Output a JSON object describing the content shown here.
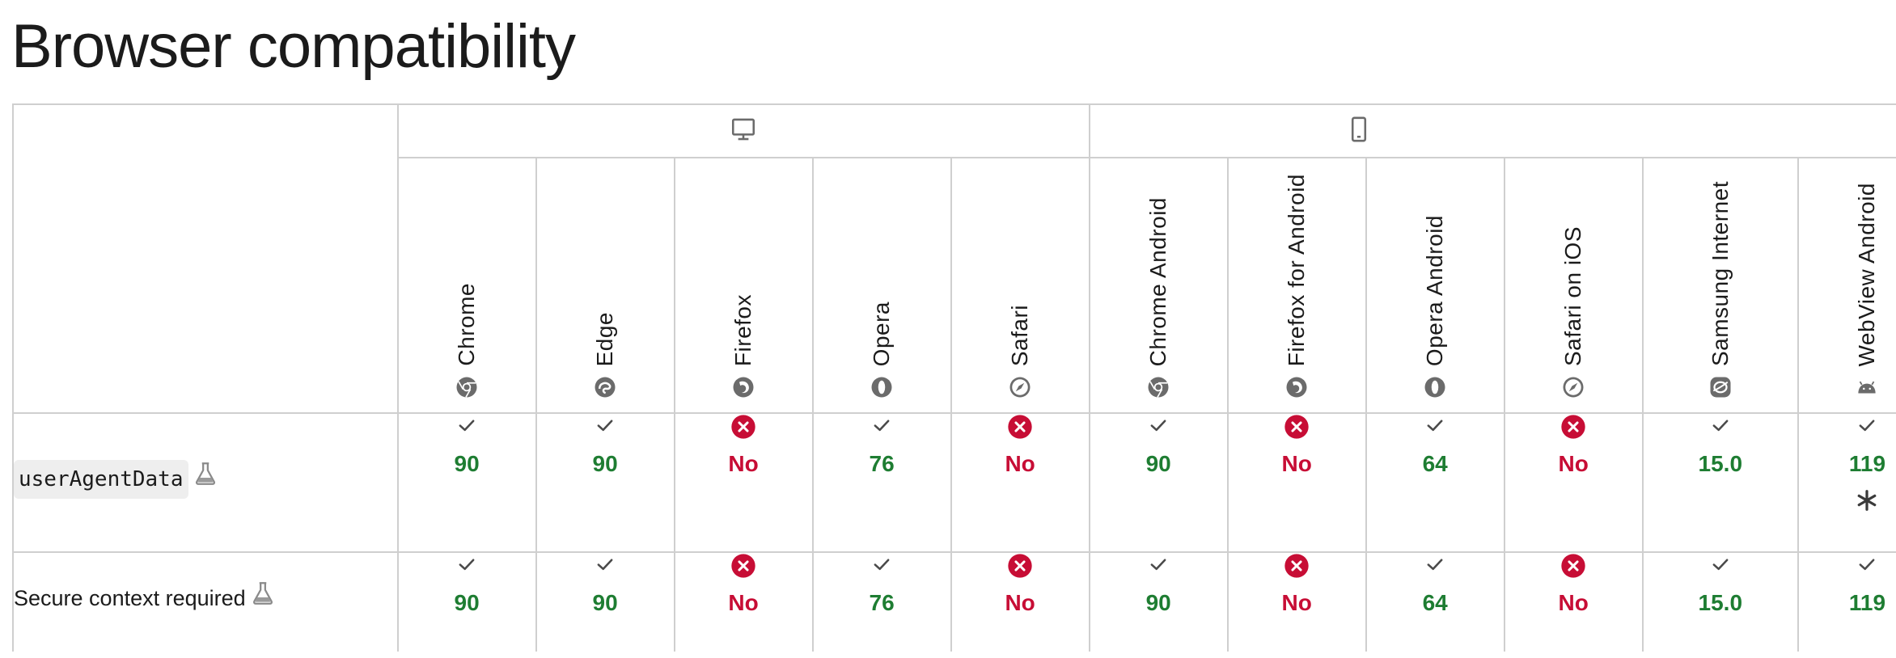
{
  "page": {
    "heading": "Browser compatibility"
  },
  "platforms": [
    {
      "name": "desktop",
      "icon": "desktop-icon"
    },
    {
      "name": "mobile",
      "icon": "mobile-icon"
    }
  ],
  "browsers": [
    {
      "name": "Chrome",
      "icon": "chrome-icon"
    },
    {
      "name": "Edge",
      "icon": "edge-icon"
    },
    {
      "name": "Firefox",
      "icon": "firefox-icon"
    },
    {
      "name": "Opera",
      "icon": "opera-icon"
    },
    {
      "name": "Safari",
      "icon": "safari-icon"
    },
    {
      "name": "Chrome Android",
      "icon": "chrome-icon"
    },
    {
      "name": "Firefox for Android",
      "icon": "firefox-icon"
    },
    {
      "name": "Opera Android",
      "icon": "opera-icon"
    },
    {
      "name": "Safari on iOS",
      "icon": "safari-icon"
    },
    {
      "name": "Samsung Internet",
      "icon": "samsung-internet-icon"
    },
    {
      "name": "WebView Android",
      "icon": "android-icon"
    }
  ],
  "rows": [
    {
      "feature": "userAgentData",
      "code": true,
      "experimental_icon": "flask-icon",
      "cells": [
        {
          "supported": true,
          "label": "90"
        },
        {
          "supported": true,
          "label": "90"
        },
        {
          "supported": false,
          "label": "No"
        },
        {
          "supported": true,
          "label": "76"
        },
        {
          "supported": false,
          "label": "No"
        },
        {
          "supported": true,
          "label": "90"
        },
        {
          "supported": false,
          "label": "No"
        },
        {
          "supported": true,
          "label": "64"
        },
        {
          "supported": false,
          "label": "No"
        },
        {
          "supported": true,
          "label": "15.0"
        },
        {
          "supported": true,
          "label": "119",
          "note": "asterisk-icon"
        }
      ]
    },
    {
      "feature": "Secure context required",
      "code": false,
      "experimental_icon": "flask-icon",
      "cells": [
        {
          "supported": true,
          "label": "90"
        },
        {
          "supported": true,
          "label": "90"
        },
        {
          "supported": false,
          "label": "No"
        },
        {
          "supported": true,
          "label": "76"
        },
        {
          "supported": false,
          "label": "No"
        },
        {
          "supported": true,
          "label": "90"
        },
        {
          "supported": false,
          "label": "No"
        },
        {
          "supported": true,
          "label": "64"
        },
        {
          "supported": false,
          "label": "No"
        },
        {
          "supported": true,
          "label": "15.0"
        },
        {
          "supported": true,
          "label": "119"
        }
      ]
    }
  ],
  "colors": {
    "yes": "#1e7d32",
    "no": "#c70d35",
    "border": "#cfcfcf",
    "icon": "#6b6b6b"
  }
}
